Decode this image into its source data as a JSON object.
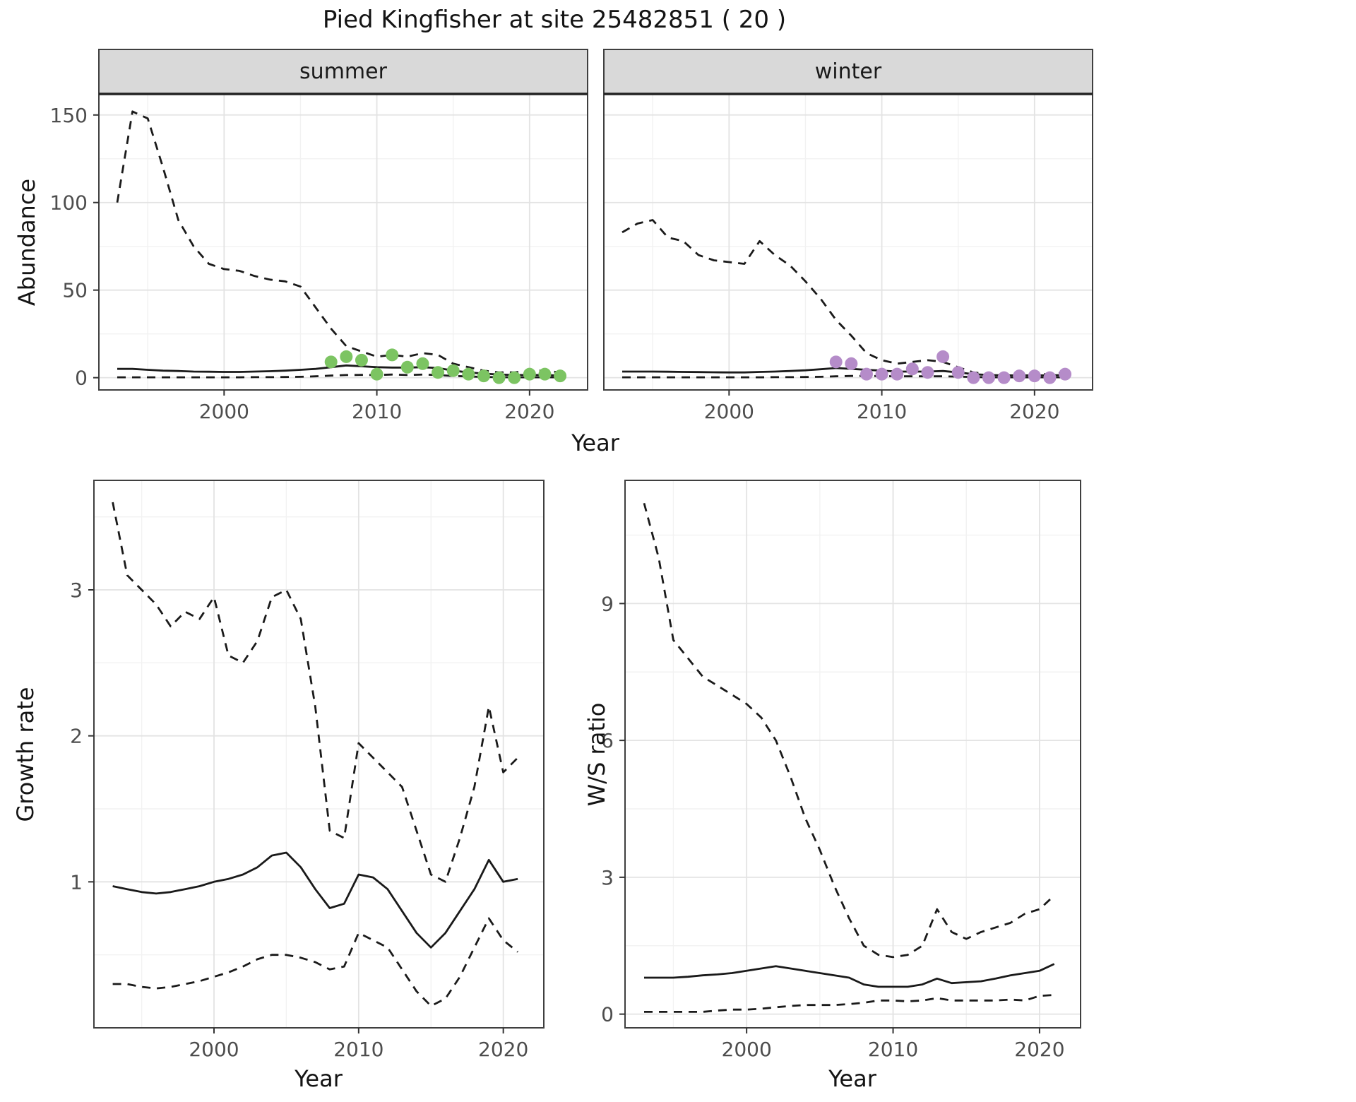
{
  "title": "Pied Kingfisher at site 25482851 ( 20 )",
  "colors": {
    "line": "#1a1a1a",
    "summer_points": "#7cc462",
    "winter_points": "#b58cc9",
    "strip_bg": "#d9d9d9",
    "grid_major": "#e3e3e3",
    "grid_minor": "#f2f2f2",
    "panel_border": "#3f3f3f",
    "axis_text": "#4d4d4d",
    "tick_mark": "#333333"
  },
  "chart_data": [
    {
      "id": "abundance_summer",
      "type": "line",
      "facet": "summer",
      "xlabel": "Year",
      "ylabel": "Abundance",
      "xlim": [
        1991.8,
        2023.8
      ],
      "ylim": [
        -7,
        162
      ],
      "xticks": [
        2000,
        2010,
        2020
      ],
      "yticks": [
        0,
        50,
        100,
        150
      ],
      "x": [
        1993,
        1994,
        1995,
        1996,
        1997,
        1998,
        1999,
        2000,
        2001,
        2002,
        2003,
        2004,
        2005,
        2006,
        2007,
        2008,
        2009,
        2010,
        2011,
        2012,
        2013,
        2014,
        2015,
        2016,
        2017,
        2018,
        2019,
        2020,
        2021,
        2022
      ],
      "series": [
        {
          "name": "upper_ci",
          "style": "dashed",
          "values": [
            100,
            152,
            148,
            120,
            90,
            75,
            65,
            62,
            61,
            58,
            56,
            55,
            52,
            40,
            28,
            18,
            15,
            12,
            13,
            12,
            14,
            13,
            8,
            6,
            4,
            3,
            3,
            4,
            4,
            3
          ]
        },
        {
          "name": "median",
          "style": "solid",
          "values": [
            5,
            5,
            4.5,
            4,
            3.8,
            3.5,
            3.4,
            3.3,
            3.3,
            3.5,
            3.7,
            4,
            4.5,
            5,
            6,
            7,
            6.5,
            6,
            5.8,
            5.8,
            6,
            5.5,
            4,
            3,
            2.3,
            1.8,
            1.5,
            1.5,
            1.5,
            1.2
          ]
        },
        {
          "name": "lower_ci",
          "style": "dashed",
          "values": [
            0.2,
            0.2,
            0.2,
            0.2,
            0.2,
            0.2,
            0.2,
            0.2,
            0.2,
            0.3,
            0.3,
            0.4,
            0.5,
            0.8,
            1.2,
            1.5,
            1.6,
            1.5,
            1.8,
            1.5,
            1.8,
            1.5,
            1,
            0.7,
            0.4,
            0.3,
            0.2,
            0.2,
            0.2,
            0.2
          ]
        },
        {
          "name": "observations",
          "style": "points",
          "color_key": "summer_points",
          "x": [
            2007,
            2008,
            2009,
            2010,
            2011,
            2012,
            2013,
            2014,
            2015,
            2016,
            2017,
            2018,
            2019,
            2020,
            2021,
            2022
          ],
          "values": [
            9,
            12,
            10,
            2,
            13,
            6,
            8,
            3,
            4,
            2,
            1,
            0,
            0,
            2,
            2,
            1
          ]
        }
      ]
    },
    {
      "id": "abundance_winter",
      "type": "line",
      "facet": "winter",
      "xlabel": "Year",
      "ylabel": "Abundance",
      "xlim": [
        1991.8,
        2023.8
      ],
      "ylim": [
        -7,
        162
      ],
      "xticks": [
        2000,
        2010,
        2020
      ],
      "yticks": [
        0,
        50,
        100,
        150
      ],
      "x": [
        1993,
        1994,
        1995,
        1996,
        1997,
        1998,
        1999,
        2000,
        2001,
        2002,
        2003,
        2004,
        2005,
        2006,
        2007,
        2008,
        2009,
        2010,
        2011,
        2012,
        2013,
        2014,
        2015,
        2016,
        2017,
        2018,
        2019,
        2020,
        2021,
        2022
      ],
      "series": [
        {
          "name": "upper_ci",
          "style": "dashed",
          "values": [
            83,
            88,
            90,
            80,
            78,
            70,
            67,
            66,
            65,
            78,
            70,
            64,
            55,
            45,
            33,
            24,
            14,
            10,
            8,
            9,
            10,
            9,
            6,
            3,
            2,
            2,
            2,
            2,
            2,
            3
          ]
        },
        {
          "name": "median",
          "style": "solid",
          "values": [
            3.5,
            3.5,
            3.5,
            3.4,
            3.3,
            3.2,
            3.1,
            3,
            3,
            3.3,
            3.5,
            3.8,
            4.2,
            4.8,
            5.5,
            5,
            4.5,
            4,
            3.5,
            3.5,
            3.5,
            3.8,
            3,
            2,
            1.5,
            1.3,
            1.3,
            1.3,
            1.3,
            1.5
          ]
        },
        {
          "name": "lower_ci",
          "style": "dashed",
          "values": [
            0.2,
            0.2,
            0.2,
            0.2,
            0.2,
            0.2,
            0.2,
            0.2,
            0.2,
            0.2,
            0.3,
            0.3,
            0.4,
            0.5,
            0.8,
            1,
            1,
            0.9,
            0.8,
            0.8,
            0.8,
            0.8,
            0.6,
            0.4,
            0.2,
            0.2,
            0.2,
            0.2,
            0.2,
            0.2
          ]
        },
        {
          "name": "observations",
          "style": "points",
          "color_key": "winter_points",
          "x": [
            2007,
            2008,
            2009,
            2010,
            2011,
            2012,
            2013,
            2014,
            2015,
            2016,
            2017,
            2018,
            2019,
            2020,
            2021,
            2022
          ],
          "values": [
            9,
            8,
            2,
            2,
            2,
            5,
            3,
            12,
            3,
            0,
            0,
            0,
            1,
            1,
            0,
            2
          ]
        }
      ]
    },
    {
      "id": "growth_rate",
      "type": "line",
      "facet": null,
      "xlabel": "Year",
      "ylabel": "Growth rate",
      "xlim": [
        1991.7,
        2022.8
      ],
      "ylim": [
        0,
        3.75
      ],
      "xticks": [
        2000,
        2010,
        2020
      ],
      "yticks": [
        1,
        2,
        3
      ],
      "x": [
        1993,
        1994,
        1995,
        1996,
        1997,
        1998,
        1999,
        2000,
        2001,
        2002,
        2003,
        2004,
        2005,
        2006,
        2007,
        2008,
        2009,
        2010,
        2011,
        2012,
        2013,
        2014,
        2015,
        2016,
        2017,
        2018,
        2019,
        2020,
        2021
      ],
      "series": [
        {
          "name": "upper_ci",
          "style": "dashed",
          "values": [
            3.6,
            3.1,
            3.0,
            2.9,
            2.75,
            2.85,
            2.8,
            2.95,
            2.55,
            2.5,
            2.65,
            2.95,
            3.0,
            2.8,
            2.2,
            1.35,
            1.3,
            1.95,
            1.85,
            1.75,
            1.65,
            1.35,
            1.05,
            1.0,
            1.3,
            1.65,
            2.2,
            1.75,
            1.85
          ]
        },
        {
          "name": "median",
          "style": "solid",
          "values": [
            0.97,
            0.95,
            0.93,
            0.92,
            0.93,
            0.95,
            0.97,
            1.0,
            1.02,
            1.05,
            1.1,
            1.18,
            1.2,
            1.1,
            0.95,
            0.82,
            0.85,
            1.05,
            1.03,
            0.95,
            0.8,
            0.65,
            0.55,
            0.65,
            0.8,
            0.95,
            1.15,
            1.0,
            1.02
          ]
        },
        {
          "name": "lower_ci",
          "style": "dashed",
          "values": [
            0.3,
            0.3,
            0.28,
            0.27,
            0.28,
            0.3,
            0.32,
            0.35,
            0.38,
            0.42,
            0.47,
            0.5,
            0.5,
            0.48,
            0.45,
            0.4,
            0.42,
            0.65,
            0.6,
            0.55,
            0.4,
            0.25,
            0.15,
            0.2,
            0.35,
            0.55,
            0.75,
            0.6,
            0.52
          ]
        }
      ]
    },
    {
      "id": "ws_ratio",
      "type": "line",
      "facet": null,
      "xlabel": "Year",
      "ylabel": "W/S ratio",
      "xlim": [
        1991.7,
        2022.8
      ],
      "ylim": [
        -0.3,
        11.7
      ],
      "xticks": [
        2000,
        2010,
        2020
      ],
      "yticks": [
        0,
        3,
        6,
        9
      ],
      "x": [
        1993,
        1994,
        1995,
        1996,
        1997,
        1998,
        1999,
        2000,
        2001,
        2002,
        2003,
        2004,
        2005,
        2006,
        2007,
        2008,
        2009,
        2010,
        2011,
        2012,
        2013,
        2014,
        2015,
        2016,
        2017,
        2018,
        2019,
        2020,
        2021
      ],
      "series": [
        {
          "name": "upper_ci",
          "style": "dashed",
          "values": [
            11.2,
            10,
            8.2,
            7.8,
            7.4,
            7.2,
            7.0,
            6.8,
            6.5,
            6.0,
            5.2,
            4.3,
            3.6,
            2.8,
            2.1,
            1.5,
            1.3,
            1.25,
            1.3,
            1.5,
            2.3,
            1.8,
            1.65,
            1.8,
            1.9,
            2.0,
            2.2,
            2.3,
            2.6
          ]
        },
        {
          "name": "median",
          "style": "solid",
          "values": [
            0.8,
            0.8,
            0.8,
            0.82,
            0.85,
            0.87,
            0.9,
            0.95,
            1.0,
            1.05,
            1.0,
            0.95,
            0.9,
            0.85,
            0.8,
            0.65,
            0.6,
            0.6,
            0.6,
            0.65,
            0.78,
            0.68,
            0.7,
            0.72,
            0.78,
            0.85,
            0.9,
            0.95,
            1.1
          ]
        },
        {
          "name": "lower_ci",
          "style": "dashed",
          "values": [
            0.05,
            0.05,
            0.05,
            0.05,
            0.05,
            0.08,
            0.1,
            0.1,
            0.12,
            0.15,
            0.18,
            0.2,
            0.2,
            0.2,
            0.22,
            0.25,
            0.3,
            0.3,
            0.28,
            0.3,
            0.35,
            0.3,
            0.3,
            0.3,
            0.3,
            0.32,
            0.3,
            0.4,
            0.42
          ]
        }
      ]
    }
  ]
}
